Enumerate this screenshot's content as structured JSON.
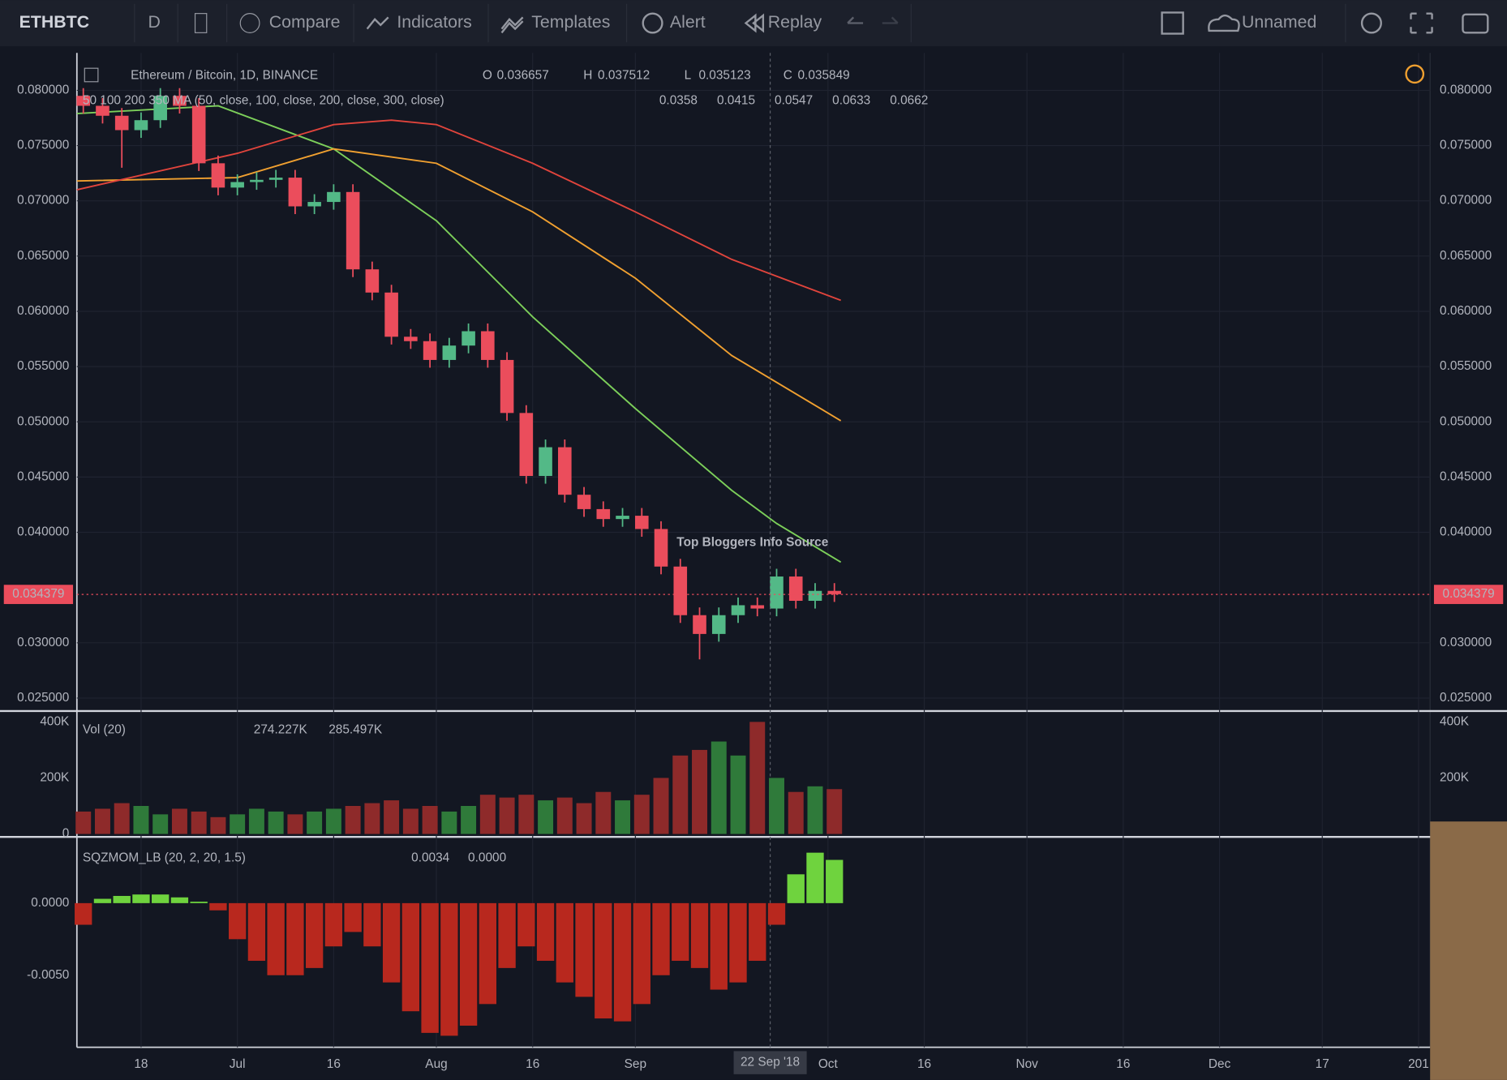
{
  "toolbar": {
    "symbol": "ETHBTC",
    "interval": "D",
    "compare": "Compare",
    "indicators": "Indicators",
    "templates": "Templates",
    "alert": "Alert",
    "replay": "Replay",
    "layout": "Unnamed"
  },
  "chart_data": [
    {
      "type": "candlestick",
      "title": "Ethereum / Bitcoin, 1D, BINANCE",
      "ohlc_labels": [
        "O",
        "H",
        "L",
        "C"
      ],
      "ohlc_values": [
        0.036657,
        0.037512,
        0.035123,
        0.035849
      ],
      "ma_legend": "50 100 200 350 MA (50, close, 100, close, 200, close, 300, close)",
      "ma_values": [
        0.0358,
        0.0415,
        0.0547,
        0.0633,
        0.0662
      ],
      "ma_value_colors": [
        "#4a90d0",
        "#7ccf5a",
        "#f0a030",
        "#e0443c",
        "#f0a030"
      ],
      "watermark": "Top Bloggers Info Source",
      "up_color": "#53b987",
      "down_color": "#eb4d5c",
      "x": [
        -24,
        -21,
        -18,
        -15,
        -12,
        -9,
        -6,
        -3,
        0,
        3,
        6,
        9,
        12,
        15,
        18,
        21,
        24,
        27,
        30,
        33,
        36,
        39,
        42,
        45,
        48,
        51,
        54,
        57,
        60,
        63,
        66,
        69,
        72,
        75,
        78,
        81,
        84,
        87,
        90,
        93
      ],
      "open": [
        0.0795,
        0.0786,
        0.0777,
        0.0764,
        0.0773,
        0.0795,
        0.0786,
        0.0734,
        0.0712,
        0.0717,
        0.0719,
        0.0721,
        0.0695,
        0.0699,
        0.0708,
        0.0638,
        0.0617,
        0.0577,
        0.0573,
        0.0556,
        0.0569,
        0.0582,
        0.0556,
        0.0508,
        0.0451,
        0.0477,
        0.0434,
        0.0421,
        0.0412,
        0.0415,
        0.0403,
        0.0369,
        0.0325,
        0.0308,
        0.0325,
        0.0334,
        0.0331,
        0.036,
        0.0338,
        0.0347
      ],
      "high": [
        0.0802,
        0.0793,
        0.0784,
        0.078,
        0.0802,
        0.0802,
        0.0793,
        0.0741,
        0.0724,
        0.0726,
        0.0728,
        0.0728,
        0.0706,
        0.0715,
        0.0715,
        0.0645,
        0.0624,
        0.0584,
        0.058,
        0.0576,
        0.0589,
        0.0589,
        0.0563,
        0.0515,
        0.0484,
        0.0484,
        0.0441,
        0.0428,
        0.0422,
        0.0422,
        0.041,
        0.0376,
        0.0332,
        0.0332,
        0.0341,
        0.0341,
        0.0367,
        0.0367,
        0.0354,
        0.0354
      ],
      "low": [
        0.0779,
        0.077,
        0.073,
        0.0757,
        0.0766,
        0.0779,
        0.0727,
        0.0705,
        0.0705,
        0.071,
        0.0712,
        0.0688,
        0.0688,
        0.0692,
        0.0631,
        0.061,
        0.057,
        0.0566,
        0.0549,
        0.0549,
        0.0562,
        0.0549,
        0.0501,
        0.0444,
        0.0444,
        0.0427,
        0.0414,
        0.0405,
        0.0405,
        0.0396,
        0.0362,
        0.0318,
        0.0285,
        0.0301,
        0.0318,
        0.0324,
        0.0324,
        0.0331,
        0.0331,
        0.0337
      ],
      "close": [
        0.0786,
        0.0777,
        0.0764,
        0.0773,
        0.0795,
        0.0786,
        0.0734,
        0.0712,
        0.0717,
        0.0719,
        0.0721,
        0.0695,
        0.0699,
        0.0708,
        0.0638,
        0.0617,
        0.0577,
        0.0573,
        0.0556,
        0.0569,
        0.0582,
        0.0556,
        0.0508,
        0.0451,
        0.0477,
        0.0434,
        0.0421,
        0.0412,
        0.0415,
        0.0403,
        0.0369,
        0.0325,
        0.0308,
        0.0325,
        0.0334,
        0.0331,
        0.036,
        0.0338,
        0.0347,
        0.0344
      ],
      "series": [
        {
          "color": "#7ccf5a",
          "x": [
            -25,
            -3,
            15,
            31,
            46,
            62,
            77,
            84,
            94
          ],
          "values": [
            0.0779,
            0.0786,
            0.0747,
            0.0682,
            0.0595,
            0.0512,
            0.0438,
            0.0408,
            0.0373
          ]
        },
        {
          "color": "#f0a030",
          "x": [
            -25,
            0,
            15,
            31,
            46,
            62,
            77,
            94
          ],
          "values": [
            0.0718,
            0.0721,
            0.0747,
            0.0734,
            0.069,
            0.063,
            0.056,
            0.0501
          ]
        },
        {
          "color": "#e0443c",
          "x": [
            -25,
            0,
            15,
            24,
            31,
            46,
            62,
            77,
            94
          ],
          "values": [
            0.071,
            0.0743,
            0.0769,
            0.0773,
            0.0769,
            0.0734,
            0.069,
            0.0647,
            0.061
          ]
        }
      ],
      "last_price": 0.034379,
      "crosshair": {
        "value": 83,
        "label": "22 Sep '18"
      },
      "xlim": [
        -25,
        185.8
      ],
      "xticks": [
        {
          "value": -15,
          "label": "18"
        },
        {
          "value": 0,
          "label": "Jul"
        },
        {
          "value": 15,
          "label": "16"
        },
        {
          "value": 31,
          "label": "Aug"
        },
        {
          "value": 46,
          "label": "16"
        },
        {
          "value": 62,
          "label": "Sep"
        },
        {
          "value": 92,
          "label": "Oct"
        },
        {
          "value": 107,
          "label": "16"
        },
        {
          "value": 123,
          "label": "Nov"
        },
        {
          "value": 138,
          "label": "16"
        },
        {
          "value": 153,
          "label": "Dec"
        },
        {
          "value": 169,
          "label": "17"
        },
        {
          "value": 184,
          "label": "201"
        }
      ],
      "ylim": [
        0.024,
        0.08339
      ],
      "yticks": [
        {
          "value": 0.025,
          "label": "0.025000"
        },
        {
          "value": 0.03,
          "label": "0.030000"
        },
        {
          "value": 0.04,
          "label": "0.040000"
        },
        {
          "value": 0.045,
          "label": "0.045000"
        },
        {
          "value": 0.05,
          "label": "0.050000"
        },
        {
          "value": 0.055,
          "label": "0.055000"
        },
        {
          "value": 0.06,
          "label": "0.060000"
        },
        {
          "value": 0.065,
          "label": "0.065000"
        },
        {
          "value": 0.07,
          "label": "0.070000"
        },
        {
          "value": 0.075,
          "label": "0.075000"
        },
        {
          "value": 0.08,
          "label": "0.080000"
        }
      ],
      "grid": true
    },
    {
      "type": "bar",
      "title": "Vol (20)",
      "legend_values": [
        {
          "value": 274227,
          "label": "274.227K"
        },
        {
          "value": 285497,
          "label": "285.497K"
        }
      ],
      "legend_colors": [
        "#6b3a3a",
        "#4a90d0"
      ],
      "values": [
        80000,
        90000,
        110000,
        100000,
        70000,
        90000,
        80000,
        60000,
        70000,
        90000,
        80000,
        70000,
        80000,
        90000,
        100000,
        110000,
        120000,
        90000,
        100000,
        80000,
        100000,
        140000,
        130000,
        140000,
        120000,
        130000,
        110000,
        150000,
        120000,
        140000,
        200000,
        280000,
        300000,
        330000,
        280000,
        400000,
        200000,
        150000,
        170000,
        160000
      ],
      "up_color": "#2f7a3a",
      "down_color": "#8e2a2a",
      "ylim": [
        -7000,
        432000
      ],
      "yticks": [
        0,
        {
          "value": 200000,
          "label": "200K"
        },
        {
          "value": 400000,
          "label": "400K"
        }
      ]
    },
    {
      "type": "histogram",
      "title": "SQZMOM_LB (20, 2, 20, 1.5)",
      "legend_values": [
        0.0034,
        {
          "value": 0,
          "label": "0.0000"
        }
      ],
      "legend_colors": [
        "#5fcf3a",
        "#d1d4dc"
      ],
      "values": [
        -0.0015,
        0.0003,
        0.0005,
        0.0006,
        0.0006,
        0.0004,
        0.0001,
        -0.0005,
        -0.0025,
        -0.004,
        -0.005,
        -0.005,
        -0.0045,
        -0.003,
        -0.002,
        -0.003,
        -0.0055,
        -0.0075,
        -0.009,
        -0.0092,
        -0.0085,
        -0.007,
        -0.0045,
        -0.003,
        -0.004,
        -0.0055,
        -0.0065,
        -0.008,
        -0.0082,
        -0.007,
        -0.005,
        -0.004,
        -0.0045,
        -0.006,
        -0.0055,
        -0.004,
        -0.0015,
        0.002,
        0.0035,
        0.003
      ],
      "up_color": "#6fd33e",
      "down_color": "#b8281e",
      "ylim": [
        -0.01,
        0.00453
      ],
      "yticks": [
        {
          "value": -0.005,
          "label": "-0.0050"
        },
        {
          "value": 0,
          "label": "0.0000"
        }
      ]
    }
  ]
}
